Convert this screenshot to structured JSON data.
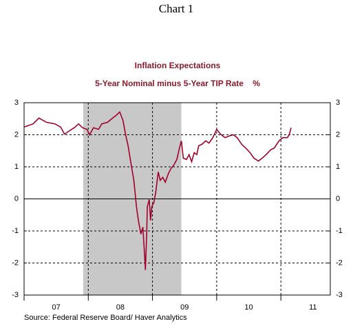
{
  "header": "Chart 1",
  "source": "Source:  Federal Reserve Board/ Haver Analytics",
  "chart_data": {
    "type": "line",
    "title": "Inflation Expectations",
    "subtitle": "5-Year Nominal minus 5-Year TIP Rate    %",
    "xlim": [
      2007.0,
      2011.77
    ],
    "xticks": [
      2007,
      2008,
      2009,
      2010,
      2011
    ],
    "xticklabels": [
      {
        "value": 2007.5,
        "label": "07"
      },
      {
        "value": 2008.5,
        "label": "08"
      },
      {
        "value": 2009.5,
        "label": "09"
      },
      {
        "value": 2010.5,
        "label": "10"
      },
      {
        "value": 2011.5,
        "label": "11"
      }
    ],
    "ylim": [
      -3,
      3
    ],
    "yticks": [
      -3,
      -2,
      -1,
      0,
      1,
      2,
      3
    ],
    "grid": true,
    "shade": [
      2007.92,
      2009.45
    ],
    "series": [
      {
        "name": "5-Year Nominal minus 5-Year TIP Rate",
        "color": "#a0002a",
        "x": [
          2007.0,
          2007.14,
          2007.23,
          2007.35,
          2007.48,
          2007.57,
          2007.63,
          2007.71,
          2007.78,
          2007.85,
          2007.91,
          2007.98,
          2008.02,
          2008.08,
          2008.16,
          2008.21,
          2008.3,
          2008.38,
          2008.43,
          2008.49,
          2008.54,
          2008.58,
          2008.62,
          2008.67,
          2008.71,
          2008.75,
          2008.78,
          2008.82,
          2008.85,
          2008.87,
          2008.89,
          2008.91,
          2008.92,
          2008.95,
          2008.97,
          2008.99,
          2009.02,
          2009.05,
          2009.09,
          2009.12,
          2009.16,
          2009.2,
          2009.25,
          2009.29,
          2009.33,
          2009.38,
          2009.42,
          2009.45,
          2009.48,
          2009.53,
          2009.57,
          2009.61,
          2009.65,
          2009.69,
          2009.72,
          2009.77,
          2009.83,
          2009.88,
          2009.94,
          2010.0,
          2010.06,
          2010.13,
          2010.19,
          2010.26,
          2010.32,
          2010.39,
          2010.45,
          2010.52,
          2010.58,
          2010.65,
          2010.71,
          2010.77,
          2010.84,
          2010.9,
          2010.97,
          2011.03,
          2011.1,
          2011.13,
          2011.16
        ],
        "values": [
          2.24,
          2.34,
          2.52,
          2.39,
          2.34,
          2.24,
          2.02,
          2.13,
          2.22,
          2.34,
          2.22,
          2.17,
          2.0,
          2.22,
          2.17,
          2.34,
          2.39,
          2.52,
          2.6,
          2.71,
          2.45,
          2.02,
          1.66,
          1.05,
          0.58,
          -0.24,
          -0.67,
          -1.1,
          -0.88,
          -1.53,
          -2.22,
          -1.1,
          -0.24,
          -0.02,
          -0.67,
          -0.24,
          -0.13,
          0.19,
          0.84,
          0.58,
          0.67,
          0.52,
          0.8,
          0.95,
          1.05,
          1.23,
          1.59,
          1.81,
          1.27,
          1.23,
          1.38,
          1.16,
          1.44,
          1.38,
          1.66,
          1.7,
          1.81,
          1.74,
          1.91,
          2.17,
          2.02,
          1.91,
          1.96,
          2.0,
          1.91,
          1.7,
          1.59,
          1.44,
          1.27,
          1.18,
          1.27,
          1.38,
          1.53,
          1.59,
          1.81,
          1.91,
          1.91,
          2.0,
          2.22
        ]
      }
    ]
  }
}
